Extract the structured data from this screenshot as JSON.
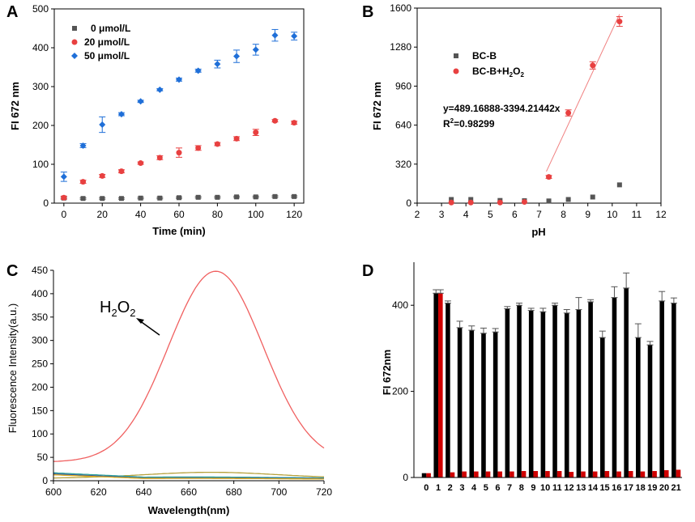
{
  "colors": {
    "gray": "#555555",
    "red": "#e84040",
    "blue": "#1f6fd8",
    "black": "#000000",
    "bar_red": "#d00000",
    "fit": "#f08080"
  },
  "chart_data": [
    {
      "panel": "A",
      "type": "scatter",
      "xlabel": "Time (min)",
      "ylabel": "FI 672 nm",
      "xlim": [
        -5,
        125
      ],
      "ylim": [
        0,
        500
      ],
      "xticks": [
        0,
        20,
        40,
        60,
        80,
        100,
        120
      ],
      "yticks": [
        0,
        100,
        200,
        300,
        400,
        500
      ],
      "legend_position": "top-left",
      "x": [
        0,
        10,
        20,
        30,
        40,
        50,
        60,
        70,
        80,
        90,
        100,
        110,
        120
      ],
      "series": [
        {
          "name": "0 μmol/L",
          "marker": "square",
          "color": "#555555",
          "values": [
            13,
            12,
            12,
            12,
            13,
            13,
            14,
            15,
            15,
            16,
            16,
            17,
            17
          ],
          "errors": [
            2,
            2,
            2,
            2,
            2,
            2,
            2,
            2,
            2,
            2,
            2,
            2,
            2
          ]
        },
        {
          "name": "20 μmol/L",
          "marker": "circle",
          "color": "#e84040",
          "values": [
            14,
            55,
            70,
            82,
            103,
            117,
            130,
            142,
            152,
            166,
            182,
            212,
            207
          ],
          "errors": [
            4,
            4,
            4,
            4,
            3,
            5,
            12,
            6,
            4,
            5,
            8,
            3,
            4
          ]
        },
        {
          "name": "50 μmol/L",
          "marker": "diamond",
          "color": "#1f6fd8",
          "values": [
            68,
            148,
            202,
            229,
            262,
            292,
            318,
            341,
            358,
            378,
            395,
            432,
            430
          ],
          "errors": [
            12,
            5,
            20,
            4,
            3,
            3,
            4,
            4,
            10,
            16,
            14,
            15,
            10
          ]
        }
      ]
    },
    {
      "panel": "B",
      "type": "scatter",
      "xlabel": "pH",
      "ylabel": "FI 672 nm",
      "xlim": [
        2,
        12
      ],
      "ylim": [
        0,
        1600
      ],
      "xticks": [
        2,
        3,
        4,
        5,
        6,
        7,
        8,
        9,
        10,
        11,
        12
      ],
      "yticks": [
        0,
        320,
        640,
        960,
        1280,
        1600
      ],
      "legend_position": "top-left",
      "series": [
        {
          "name": "BC-B",
          "marker": "square",
          "color": "#555555",
          "x": [
            3.4,
            4.2,
            5.4,
            6.4,
            7.4,
            8.2,
            9.2,
            10.3
          ],
          "values": [
            30,
            30,
            22,
            20,
            18,
            30,
            50,
            150
          ]
        },
        {
          "name": "BC-B+H2O2",
          "marker": "circle",
          "color": "#e84040",
          "x": [
            3.4,
            4.2,
            5.4,
            6.4,
            7.4,
            8.2,
            9.2,
            10.3
          ],
          "values": [
            5,
            5,
            5,
            10,
            215,
            740,
            1130,
            1490
          ],
          "errors": [
            0,
            0,
            0,
            0,
            12,
            25,
            30,
            40
          ]
        }
      ],
      "fit_line": {
        "x_from": 7.3,
        "x_to": 10.3
      },
      "annotation": {
        "equation": "y=489.16888-3394.21442x",
        "r2_label": "R",
        "r2_sup": "2",
        "r2_value": "=0.98299"
      },
      "legend": {
        "item1": "BC-B",
        "item2_main": "BC-B+H",
        "item2_sub1": "2",
        "item2_mid": "O",
        "item2_sub2": "2"
      }
    },
    {
      "panel": "C",
      "type": "line",
      "xlabel": "Wavelength(nm)",
      "ylabel": "Fluorescence Intensity(a.u.)",
      "xlim": [
        600,
        720
      ],
      "ylim": [
        0,
        450
      ],
      "xticks": [
        600,
        620,
        640,
        660,
        680,
        700,
        720
      ],
      "yticks": [
        0,
        50,
        100,
        150,
        200,
        250,
        300,
        350,
        400,
        450
      ],
      "label": {
        "main": "H",
        "sub1": "2",
        "mid": "O",
        "sub2": "2"
      },
      "series": [
        {
          "name": "H2O2",
          "color": "#f06060",
          "peak_x": 672,
          "peak_y": 408,
          "sigma": 21,
          "base": 40
        },
        {
          "name": "olive",
          "color": "#b5a13c",
          "peak_x": 670,
          "peak_y": 13,
          "sigma": 30,
          "base": 5
        },
        {
          "name": "teal",
          "color": "#2aa198",
          "peak_x": 660,
          "peak_y": 3,
          "sigma": 40,
          "base": 5,
          "start": 16
        },
        {
          "name": "navy",
          "color": "#3d5a98",
          "peak_x": 660,
          "peak_y": 2,
          "sigma": 40,
          "base": 4,
          "start": 14
        },
        {
          "name": "yellow",
          "color": "#e0b020",
          "peak_x": 660,
          "peak_y": 2,
          "sigma": 40,
          "base": 3,
          "start": 12
        }
      ]
    },
    {
      "panel": "D",
      "type": "bar",
      "ylabel": "FI 672nm",
      "ylim": [
        0,
        500
      ],
      "yticks": [
        0,
        200,
        400
      ],
      "categories": [
        "0",
        "1",
        "2",
        "3",
        "4",
        "5",
        "6",
        "7",
        "8",
        "9",
        "10",
        "11",
        "12",
        "13",
        "14",
        "15",
        "16",
        "17",
        "18",
        "19",
        "20",
        "21"
      ],
      "series": [
        {
          "name": "black",
          "color": "#000000",
          "values": [
            10,
            428,
            405,
            348,
            342,
            335,
            338,
            392,
            400,
            388,
            385,
            400,
            382,
            390,
            408,
            325,
            418,
            440,
            325,
            308,
            410,
            405
          ],
          "errors": [
            0,
            8,
            5,
            15,
            10,
            12,
            8,
            5,
            5,
            5,
            8,
            5,
            8,
            28,
            5,
            15,
            25,
            35,
            32,
            8,
            22,
            12
          ]
        },
        {
          "name": "red",
          "color": "#d00000",
          "values": [
            10,
            428,
            12,
            14,
            14,
            14,
            14,
            14,
            15,
            15,
            15,
            15,
            13,
            14,
            14,
            15,
            14,
            15,
            14,
            15,
            17,
            18
          ],
          "errors": [
            0,
            8,
            0,
            0,
            0,
            0,
            0,
            0,
            0,
            0,
            0,
            0,
            0,
            0,
            0,
            0,
            0,
            0,
            0,
            0,
            0,
            0
          ]
        }
      ]
    }
  ]
}
